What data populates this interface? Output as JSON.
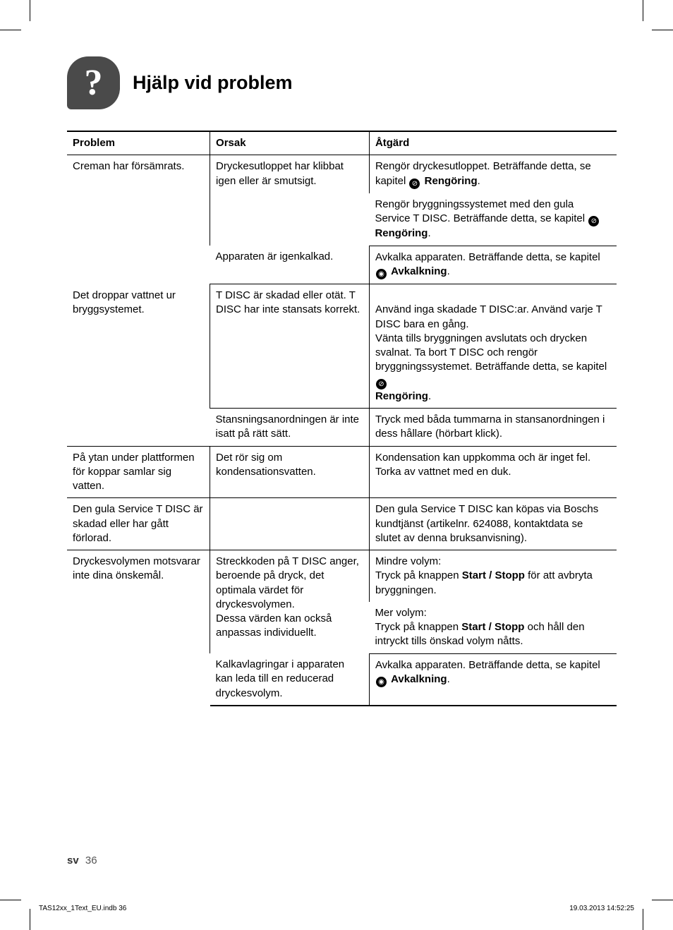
{
  "section": {
    "icon_glyph": "?",
    "title": "Hjälp vid problem"
  },
  "table": {
    "headers": {
      "problem": "Problem",
      "cause": "Orsak",
      "action": "Åtgärd"
    },
    "icons": {
      "cleaning": {
        "glyph": "⊘",
        "label": "Rengöring"
      },
      "descaling": {
        "glyph": "◉",
        "label": "Avkalkning"
      }
    },
    "rows": {
      "r1": {
        "problem": "Creman har försämrats.",
        "cause_a": "Dryckesutloppet har klibbat igen eller är smutsigt.",
        "action_a1_pre": "Rengör dryckesutloppet. Beträffande detta, se kapitel",
        "action_a1_ref": "Rengöring",
        "action_a1_post": ".",
        "action_a2_pre": "Rengör bryggningssystemet med den gula Service T DISC. Beträffande detta, se kapitel",
        "action_a2_ref": "Rengöring",
        "action_a2_post": ".",
        "cause_b": "Apparaten är igenkalkad.",
        "action_b_pre": "Avkalka apparaten. Beträffande detta, se kapitel",
        "action_b_ref": "Avkalkning",
        "action_b_post": "."
      },
      "r2": {
        "problem": "Det droppar vattnet ur bryggsystemet.",
        "cause_a": "T DISC är skadad eller otät. T DISC har inte stansats korrekt.",
        "action_a_pre": "Använd inga skadade T DISC:ar. Använd varje T DISC bara en gång.\nVänta tills bryggningen avslutats och drycken svalnat. Ta bort T DISC och rengör bryggningssystemet. Beträffande detta, se kapitel",
        "action_a_ref": "Rengöring",
        "action_a_post": ".",
        "cause_b": "Stansningsanordningen är inte isatt på rätt sätt.",
        "action_b": "Tryck med båda tummarna in stansanordningen i dess hållare (hörbart klick)."
      },
      "r3": {
        "problem": "På ytan under plattformen för koppar samlar sig vatten.",
        "cause": "Det rör sig om kondensationsvatten.",
        "action": "Kondensation kan uppkomma och är inget fel. Torka av vattnet med en duk."
      },
      "r4": {
        "problem": "Den gula Service T DISC är skadad eller har gått förlorad.",
        "cause": "",
        "action": "Den gula Service T DISC kan köpas via Boschs kundtjänst (artikelnr. 624088, kontaktdata se slutet av denna bruksanvisning)."
      },
      "r5": {
        "problem": "Dryckesvolymen motsvarar inte dina önskemål.",
        "cause_a": "Streckkoden på T DISC anger, beroende på dryck, det optimala värdet för dryckesvolymen.\nDessa värden kan också anpassas individuellt.",
        "action_a1_p1": "Mindre volym:",
        "action_a1_p2a": "Tryck på knappen",
        "action_a1_btn": "Start / Stopp",
        "action_a1_p2b": "för att avbryta bryggningen.",
        "action_a2_p1": "Mer volym:",
        "action_a2_p2a": "Tryck på knappen",
        "action_a2_btn": "Start / Stopp",
        "action_a2_p2b": "och håll den intryckt tills önskad volym nåtts.",
        "cause_b": "Kalkavlagringar i apparaten kan leda till en reducerad dryckesvolym.",
        "action_b_pre": "Avkalka apparaten. Beträffande detta, se kapitel",
        "action_b_ref": "Avkalkning",
        "action_b_post": "."
      }
    }
  },
  "footer": {
    "lang": "sv",
    "page_no": "36"
  },
  "print": {
    "file": "TAS12xx_1Text_EU.indb   36",
    "timestamp": "19.03.2013   14:52:25"
  },
  "col_widths": {
    "problem_pct": 26,
    "cause_pct": 29,
    "action_pct": 45
  }
}
